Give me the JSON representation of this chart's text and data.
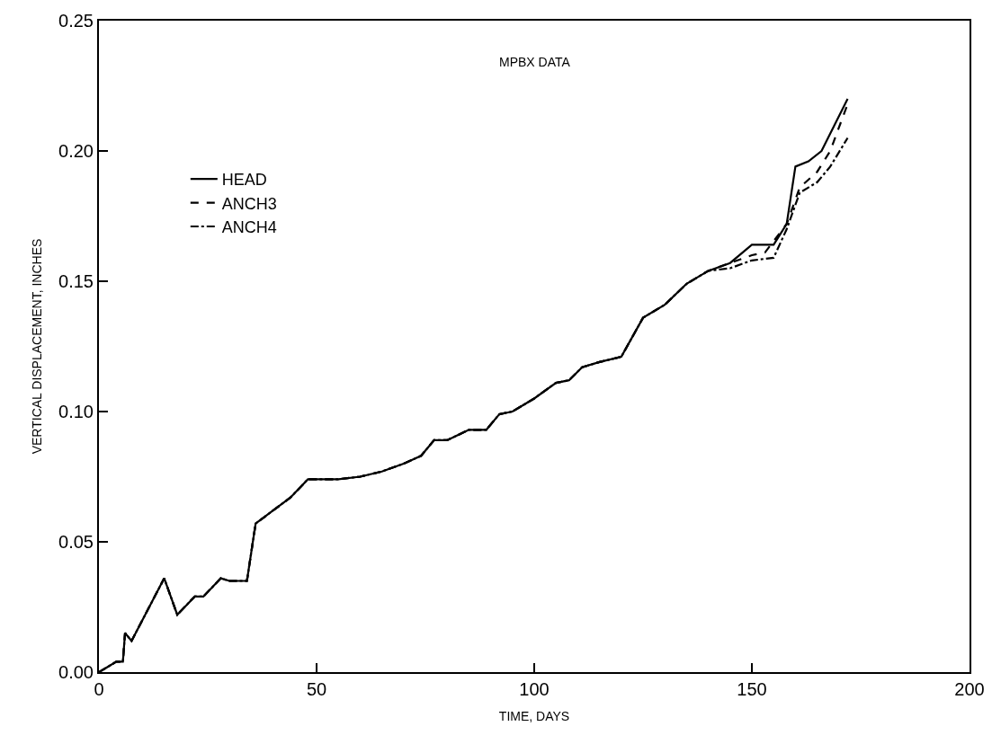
{
  "chart_data": {
    "type": "line",
    "title": "MPBX DATA",
    "xlabel": "TIME, DAYS",
    "ylabel": "VERTICAL DISPLACEMENT, INCHES",
    "xlim": [
      0,
      200
    ],
    "xticks": [
      0,
      50,
      100,
      150,
      200
    ],
    "ylim": [
      0,
      0.25
    ],
    "yticks": [
      {
        "value": 0,
        "label": "0.00"
      },
      {
        "value": 0.05,
        "label": "0.05"
      },
      {
        "value": 0.1,
        "label": "0.10"
      },
      {
        "value": 0.15,
        "label": "0.15"
      },
      {
        "value": 0.2,
        "label": "0.20"
      },
      {
        "value": 0.25,
        "label": "0.25"
      }
    ],
    "legend": "left",
    "marker": "none",
    "series": [
      {
        "name": "HEAD",
        "color": "#000000",
        "line_style": "solid",
        "x": [
          0,
          2,
          4,
          5.5,
          6,
          7.5,
          15,
          18,
          22,
          24,
          28,
          30,
          34,
          36,
          40,
          44,
          48,
          55,
          60,
          65,
          70,
          74,
          77,
          80,
          85,
          89,
          92,
          95,
          100,
          105,
          108,
          111,
          115,
          120,
          125,
          130,
          135,
          140,
          145,
          150,
          155,
          158,
          160,
          163,
          166,
          169,
          172
        ],
        "values": [
          0,
          0.002,
          0.004,
          0.004,
          0.015,
          0.012,
          0.036,
          0.022,
          0.029,
          0.029,
          0.036,
          0.035,
          0.035,
          0.057,
          0.062,
          0.067,
          0.074,
          0.074,
          0.075,
          0.077,
          0.08,
          0.083,
          0.089,
          0.089,
          0.093,
          0.093,
          0.099,
          0.1,
          0.105,
          0.111,
          0.112,
          0.117,
          0.119,
          0.121,
          0.136,
          0.141,
          0.149,
          0.154,
          0.157,
          0.164,
          0.164,
          0.172,
          0.194,
          0.196,
          0.2,
          0.21,
          0.22
        ]
      },
      {
        "name": "ANCH3",
        "color": "#000000",
        "line_style": "dashed",
        "x": [
          0,
          2,
          4,
          5.5,
          6,
          7.5,
          15,
          18,
          22,
          24,
          28,
          30,
          34,
          36,
          40,
          44,
          48,
          55,
          60,
          65,
          70,
          74,
          77,
          80,
          85,
          89,
          92,
          95,
          100,
          105,
          108,
          111,
          115,
          120,
          125,
          130,
          135,
          140,
          145,
          150,
          153,
          158,
          161,
          165,
          168,
          172
        ],
        "values": [
          0,
          0.002,
          0.004,
          0.004,
          0.015,
          0.012,
          0.036,
          0.022,
          0.029,
          0.029,
          0.036,
          0.035,
          0.035,
          0.057,
          0.062,
          0.067,
          0.074,
          0.074,
          0.075,
          0.077,
          0.08,
          0.083,
          0.089,
          0.089,
          0.093,
          0.093,
          0.099,
          0.1,
          0.105,
          0.111,
          0.112,
          0.117,
          0.119,
          0.121,
          0.136,
          0.141,
          0.149,
          0.154,
          0.157,
          0.16,
          0.161,
          0.172,
          0.186,
          0.192,
          0.2,
          0.218
        ]
      },
      {
        "name": "ANCH4",
        "color": "#000000",
        "line_style": "dashdot",
        "x": [
          0,
          2,
          4,
          5.5,
          6,
          7.5,
          15,
          18,
          22,
          24,
          28,
          30,
          34,
          36,
          40,
          44,
          48,
          55,
          60,
          65,
          70,
          74,
          77,
          80,
          85,
          89,
          92,
          95,
          100,
          105,
          108,
          111,
          115,
          120,
          125,
          130,
          135,
          140,
          145,
          150,
          155,
          158,
          161,
          165,
          168,
          172
        ],
        "values": [
          0,
          0.002,
          0.004,
          0.004,
          0.015,
          0.012,
          0.036,
          0.022,
          0.029,
          0.029,
          0.036,
          0.035,
          0.035,
          0.057,
          0.062,
          0.067,
          0.074,
          0.074,
          0.075,
          0.077,
          0.08,
          0.083,
          0.089,
          0.089,
          0.093,
          0.093,
          0.099,
          0.1,
          0.105,
          0.111,
          0.112,
          0.117,
          0.119,
          0.121,
          0.136,
          0.141,
          0.149,
          0.154,
          0.155,
          0.158,
          0.159,
          0.17,
          0.184,
          0.188,
          0.194,
          0.205
        ]
      }
    ]
  }
}
